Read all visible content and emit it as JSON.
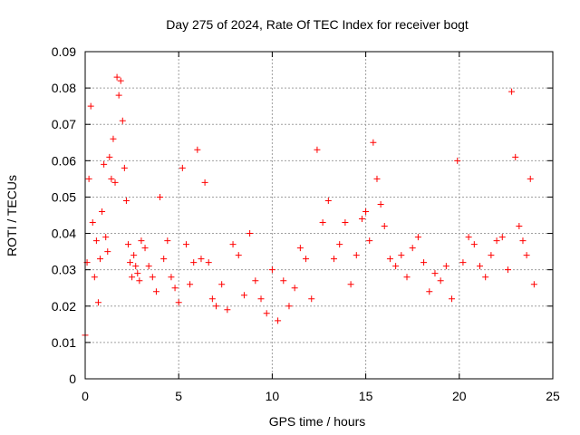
{
  "chart_data": {
    "type": "scatter",
    "title": "Day 275 of 2024, Rate Of TEC Index for receiver bogt",
    "xlabel": "GPS time / hours",
    "ylabel": "ROTI / TECUs",
    "xlim": [
      0,
      25
    ],
    "ylim": [
      0,
      0.09
    ],
    "x_ticks": [
      "0",
      "5",
      "10",
      "15",
      "20",
      "25"
    ],
    "y_ticks": [
      "0",
      "0.01",
      "0.02",
      "0.03",
      "0.04",
      "0.05",
      "0.06",
      "0.07",
      "0.08",
      "0.09"
    ],
    "grid": true,
    "marker": "plus",
    "color": "#ff0000",
    "series": [
      {
        "x": [
          0.0,
          0.1,
          0.2,
          0.3,
          0.4,
          0.5,
          0.6,
          0.7,
          0.8,
          0.9,
          1.0,
          1.1,
          1.2,
          1.3,
          1.4,
          1.5,
          1.6,
          1.7,
          1.8,
          1.9,
          2.0,
          2.1,
          2.2,
          2.3,
          2.4,
          2.5,
          2.6,
          2.7,
          2.8,
          2.9,
          3.0,
          3.2,
          3.4,
          3.6,
          3.8,
          4.0,
          4.2,
          4.4,
          4.6,
          4.8,
          5.0,
          5.2,
          5.4,
          5.6,
          5.8,
          6.0,
          6.2,
          6.4,
          6.6,
          6.8,
          7.0,
          7.3,
          7.6,
          7.9,
          8.2,
          8.5,
          8.8,
          9.1,
          9.4,
          9.7,
          10.0,
          10.3,
          10.6,
          10.9,
          11.2,
          11.5,
          11.8,
          12.1,
          12.4,
          12.7,
          13.0,
          13.3,
          13.6,
          13.9,
          14.2,
          14.5,
          14.8,
          15.0,
          15.2,
          15.4,
          15.6,
          15.8,
          16.0,
          16.3,
          16.6,
          16.9,
          17.2,
          17.5,
          17.8,
          18.1,
          18.4,
          18.7,
          19.0,
          19.3,
          19.6,
          19.9,
          20.2,
          20.5,
          20.8,
          21.1,
          21.4,
          21.7,
          22.0,
          22.3,
          22.6,
          22.8,
          23.0,
          23.2,
          23.4,
          23.6,
          23.8,
          24.0
        ],
        "y": [
          0.012,
          0.032,
          0.055,
          0.075,
          0.043,
          0.028,
          0.038,
          0.021,
          0.033,
          0.046,
          0.059,
          0.039,
          0.035,
          0.061,
          0.055,
          0.066,
          0.054,
          0.083,
          0.078,
          0.082,
          0.071,
          0.058,
          0.049,
          0.037,
          0.032,
          0.028,
          0.034,
          0.031,
          0.029,
          0.027,
          0.038,
          0.036,
          0.031,
          0.028,
          0.024,
          0.05,
          0.033,
          0.038,
          0.028,
          0.025,
          0.021,
          0.058,
          0.037,
          0.026,
          0.032,
          0.063,
          0.033,
          0.054,
          0.032,
          0.022,
          0.02,
          0.026,
          0.019,
          0.037,
          0.034,
          0.023,
          0.04,
          0.027,
          0.022,
          0.018,
          0.03,
          0.016,
          0.027,
          0.02,
          0.025,
          0.036,
          0.033,
          0.022,
          0.063,
          0.043,
          0.049,
          0.033,
          0.037,
          0.043,
          0.026,
          0.034,
          0.044,
          0.046,
          0.038,
          0.065,
          0.055,
          0.048,
          0.042,
          0.033,
          0.031,
          0.034,
          0.028,
          0.036,
          0.039,
          0.032,
          0.024,
          0.029,
          0.027,
          0.031,
          0.022,
          0.06,
          0.032,
          0.039,
          0.037,
          0.031,
          0.028,
          0.034,
          0.038,
          0.039,
          0.03,
          0.079,
          0.061,
          0.042,
          0.038,
          0.034,
          0.055,
          0.026
        ]
      }
    ]
  }
}
